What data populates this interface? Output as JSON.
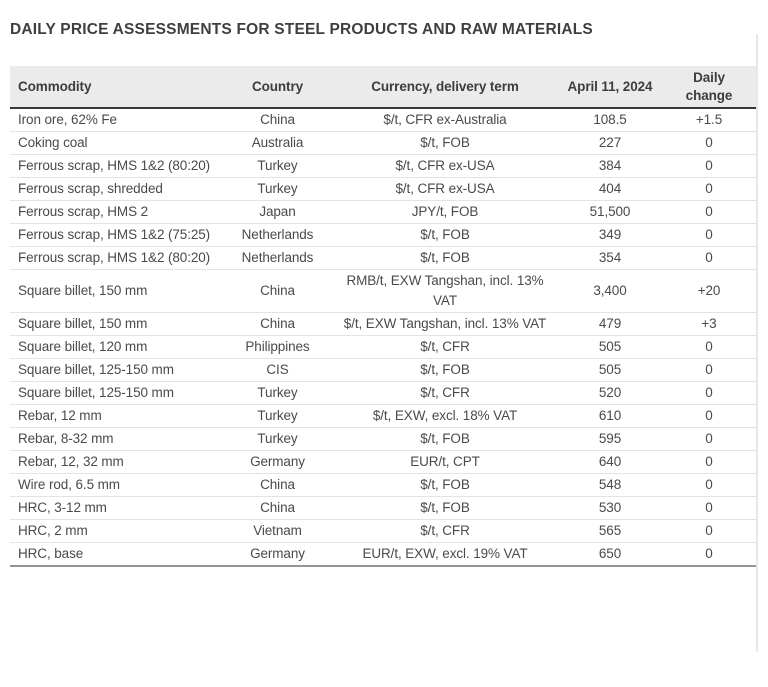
{
  "page": {
    "title": "DAILY PRICE ASSESSMENTS FOR STEEL PRODUCTS AND RAW MATERIALS"
  },
  "colors": {
    "title_text": "#3f3f3f",
    "header_bg": "#ebebeb",
    "header_text": "#3d3d3d",
    "body_text": "#4a4a4a",
    "row_separator": "#e3e3e3",
    "header_rule": "#383838",
    "bottom_rule": "#949494"
  },
  "table": {
    "header": {
      "commodity": "Commodity",
      "country": "Country",
      "currency": "Currency, delivery term",
      "date": "April 11, 2024",
      "change": "Daily change"
    },
    "rows": [
      {
        "commodity": "Iron ore, 62% Fe",
        "country": "China",
        "currency": "$/t, CFR ex-Australia",
        "price": "108.5",
        "change": "+1.5"
      },
      {
        "commodity": "Coking coal",
        "country": "Australia",
        "currency": "$/t, FOB",
        "price": "227",
        "change": "0"
      },
      {
        "commodity": "Ferrous scrap, HMS 1&2 (80:20)",
        "country": "Turkey",
        "currency": "$/t, CFR ex-USA",
        "price": "384",
        "change": "0"
      },
      {
        "commodity": "Ferrous scrap, shredded",
        "country": "Turkey",
        "currency": "$/t, CFR ex-USA",
        "price": "404",
        "change": "0"
      },
      {
        "commodity": "Ferrous scrap, HMS 2",
        "country": "Japan",
        "currency": "JPY/t, FOB",
        "price": "51,500",
        "change": "0"
      },
      {
        "commodity": "Ferrous scrap, HMS 1&2 (75:25)",
        "country": "Netherlands",
        "currency": "$/t, FOB",
        "price": "349",
        "change": "0"
      },
      {
        "commodity": "Ferrous scrap, HMS 1&2 (80:20)",
        "country": "Netherlands",
        "currency": "$/t, FOB",
        "price": "354",
        "change": "0"
      },
      {
        "commodity": "Square billet, 150 mm",
        "country": "China",
        "currency": "RMB/t, EXW Tangshan, incl. 13% VAT",
        "price": "3,400",
        "change": "+20"
      },
      {
        "commodity": "Square billet, 150 mm",
        "country": "China",
        "currency": "$/t, EXW Tangshan, incl. 13% VAT",
        "price": "479",
        "change": "+3"
      },
      {
        "commodity": "Square billet, 120 mm",
        "country": "Philippines",
        "currency": "$/t, CFR",
        "price": "505",
        "change": "0"
      },
      {
        "commodity": "Square billet, 125-150 mm",
        "country": "CIS",
        "currency": "$/t, FOB",
        "price": "505",
        "change": "0"
      },
      {
        "commodity": "Square billet, 125-150 mm",
        "country": "Turkey",
        "currency": "$/t, CFR",
        "price": "520",
        "change": "0"
      },
      {
        "commodity": "Rebar, 12 mm",
        "country": "Turkey",
        "currency": "$/t, EXW, excl. 18% VAT",
        "price": "610",
        "change": "0"
      },
      {
        "commodity": "Rebar, 8-32 mm",
        "country": "Turkey",
        "currency": "$/t, FOB",
        "price": "595",
        "change": "0"
      },
      {
        "commodity": "Rebar, 12, 32 mm",
        "country": "Germany",
        "currency": "EUR/t, CPT",
        "price": "640",
        "change": "0"
      },
      {
        "commodity": "Wire rod, 6.5 mm",
        "country": "China",
        "currency": "$/t, FOB",
        "price": "548",
        "change": "0"
      },
      {
        "commodity": "HRC, 3-12 mm",
        "country": "China",
        "currency": "$/t, FOB",
        "price": "530",
        "change": "0"
      },
      {
        "commodity": "HRC, 2 mm",
        "country": "Vietnam",
        "currency": "$/t, CFR",
        "price": "565",
        "change": "0"
      },
      {
        "commodity": "HRC, base",
        "country": "Germany",
        "currency": "EUR/t, EXW, excl. 19% VAT",
        "price": "650",
        "change": "0"
      }
    ]
  }
}
